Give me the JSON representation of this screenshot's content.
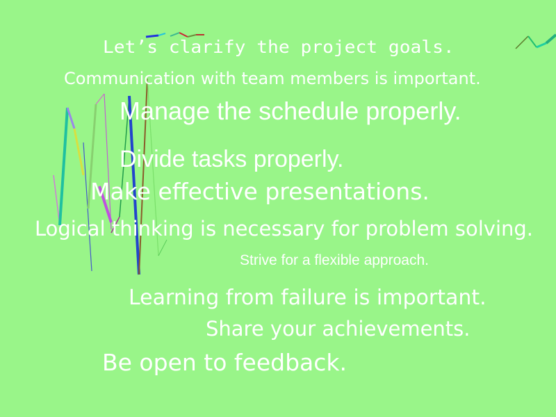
{
  "background_color": "#99f589",
  "text_color": "#ffffff",
  "lines": {
    "goals": "Let’s clarify the project goals.",
    "communication": "Communication with team members is important.",
    "schedule": "Manage the schedule properly.",
    "divide": "Divide tasks properly.",
    "presentations": "Make effective presentations.",
    "logical": "Logical thinking is necessary for problem solving.",
    "flexible": "Strive for a flexible approach.",
    "failure": "Learning from failure is important.",
    "share": "Share your achievements.",
    "feedback": "Be open to feedback."
  }
}
